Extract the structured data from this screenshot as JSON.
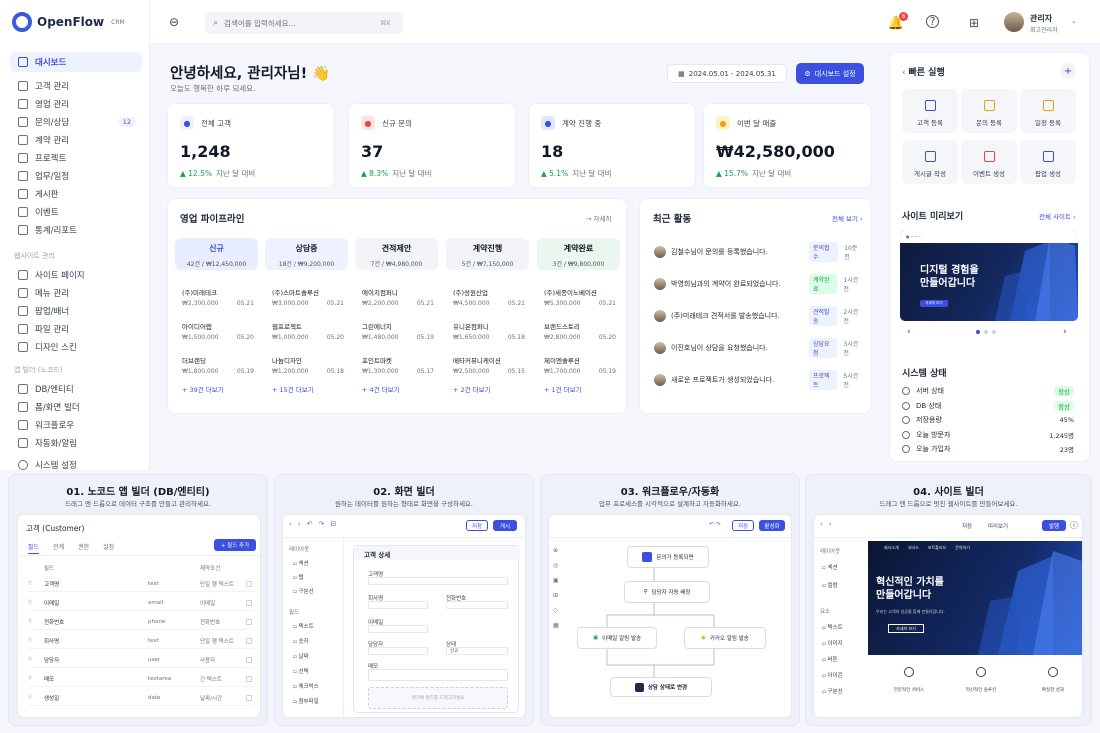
{
  "brand": {
    "name": "OpenFlow",
    "suffix": "CRM"
  },
  "sidebar": {
    "items": [
      {
        "label": "대시보드",
        "icon": "home-icon"
      },
      {
        "label": "고객 관리",
        "icon": "users-icon"
      },
      {
        "label": "영업 관리",
        "icon": "briefcase-icon"
      },
      {
        "label": "문의/상담",
        "icon": "chat-icon",
        "badge": "12"
      },
      {
        "label": "계약 관리",
        "icon": "file-icon"
      },
      {
        "label": "프로젝트",
        "icon": "folder-icon"
      },
      {
        "label": "업무/일정",
        "icon": "calendar-icon"
      },
      {
        "label": "게시판",
        "icon": "board-icon"
      },
      {
        "label": "이벤트",
        "icon": "gift-icon"
      },
      {
        "label": "통계/리포트",
        "icon": "chart-icon"
      }
    ],
    "section_web": "웹사이트 관리",
    "web_items": [
      {
        "label": "사이트 페이지",
        "icon": "page-icon"
      },
      {
        "label": "메뉴 관리",
        "icon": "menu-icon"
      },
      {
        "label": "팝업/배너",
        "icon": "popup-icon"
      },
      {
        "label": "파일 관리",
        "icon": "file-icon"
      },
      {
        "label": "디자인 스킨",
        "icon": "palette-icon"
      }
    ],
    "section_builder": "앱 빌더 (노코드)",
    "builder_items": [
      {
        "label": "DB/엔티티",
        "icon": "database-icon"
      },
      {
        "label": "폼/화면 빌더",
        "icon": "form-icon"
      },
      {
        "label": "워크플로우",
        "icon": "workflow-icon"
      },
      {
        "label": "자동화/알림",
        "icon": "bell-icon"
      }
    ],
    "settings": "시스템 설정"
  },
  "topbar": {
    "search_placeholder": "검색어를 입력하세요...",
    "shortcut": "⌘K",
    "notif_count": "8",
    "user_name": "관리자",
    "user_role": "최고관리자"
  },
  "header": {
    "greeting": "안녕하세요, 관리자님! 👋",
    "sub": "오늘도 행복한 하루 되세요.",
    "date_range": "2024.05.01 - 2024.05.31",
    "settings_btn": "대시보드 설정"
  },
  "stats": [
    {
      "label": "전체 고객",
      "value": "1,248",
      "change": "▲ 12.5%",
      "note": "지난 달 대비",
      "color": "#3b4fe0",
      "bg": "#eef1fe"
    },
    {
      "label": "신규 문의",
      "value": "37",
      "change": "▲ 8.3%",
      "note": "지난 달 대비",
      "color": "#ef4444",
      "bg": "#fee2e2"
    },
    {
      "label": "계약 진행 중",
      "value": "18",
      "change": "▲ 5.1%",
      "note": "지난 달 대비",
      "color": "#3b4fe0",
      "bg": "#e0e7ff"
    },
    {
      "label": "이번 달 매출",
      "value": "₩42,580,000",
      "change": "▲ 15.7%",
      "note": "지난 달 대비",
      "color": "#f59e0b",
      "bg": "#fef3c7"
    }
  ],
  "pipeline": {
    "title": "영업 파이프라인",
    "view_all": "→ 자세히",
    "columns": [
      {
        "name": "신규",
        "summary": "42건 / ₩12,450,000",
        "bg": "#e8edff",
        "color": "#3b4fe0",
        "deals": [
          [
            "(주)미래테크",
            "₩2,300,000",
            "05.21"
          ],
          [
            "아이디어랩",
            "₩1,500,000",
            "05.20"
          ],
          [
            "더브랜딩",
            "₩1,800,000",
            "05.19"
          ]
        ],
        "more": "+ 39건 더보기"
      },
      {
        "name": "상담중",
        "summary": "18건 / ₩9,200,000",
        "bg": "#eef2ff",
        "color": "#111827",
        "deals": [
          [
            "(주)스마트솔루션",
            "₩3,000,000",
            "05.21"
          ],
          [
            "웹프로젝트",
            "₩1,000,000",
            "05.20"
          ],
          [
            "나눔디자인",
            "₩1,200,000",
            "05.18"
          ]
        ],
        "more": "+ 15건 더보기"
      },
      {
        "name": "견적제안",
        "summary": "7건 / ₩4,980,000",
        "bg": "#f3f4f8",
        "color": "#111827",
        "deals": [
          [
            "에이치컴퍼니",
            "₩2,200,000",
            "05.21"
          ],
          [
            "그린에너지",
            "₩1,480,000",
            "05.19"
          ],
          [
            "포인트마켓",
            "₩1,300,000",
            "05.17"
          ]
        ],
        "more": "+ 4건 더보기"
      },
      {
        "name": "계약진행",
        "summary": "5건 / ₩7,150,000",
        "bg": "#f3f4f8",
        "color": "#111827",
        "deals": [
          [
            "(주)성원산업",
            "₩4,500,000",
            "05.21"
          ],
          [
            "유니온컴퍼니",
            "₩1,650,000",
            "05.18"
          ],
          [
            "메타커뮤니케이션",
            "₩2,500,000",
            "05.15"
          ]
        ],
        "more": "+ 2건 더보기"
      },
      {
        "name": "계약완료",
        "summary": "3건 / ₩9,800,000",
        "bg": "#eaf7ee",
        "color": "#111827",
        "deals": [
          [
            "(주)세종이노베이션",
            "₩5,300,000",
            "05.21"
          ],
          [
            "브랜드스토리",
            "₩2,800,000",
            "05.20"
          ],
          [
            "제이엔솔루션",
            "₩1,700,000",
            "05.19"
          ]
        ],
        "more": "+ 1건 더보기"
      }
    ]
  },
  "activity": {
    "title": "최근 활동",
    "view_all": "전체 보기 ›",
    "items": [
      {
        "text": "김철수님이 문의를 등록했습니다.",
        "tag": "문의접수",
        "tag_color": "#3b4fe0",
        "tag_bg": "#eef1fe",
        "time": "10분 전"
      },
      {
        "text": "박영희님과의 계약이 완료되었습니다.",
        "tag": "계약완료",
        "tag_color": "#16a34a",
        "tag_bg": "#dcfce7",
        "time": "1시간 전"
      },
      {
        "text": "(주)미래테크 견적서를 발송했습니다.",
        "tag": "견적발송",
        "tag_color": "#3b4fe0",
        "tag_bg": "#eef1fe",
        "time": "2시간 전"
      },
      {
        "text": "이진호님이 상담을 요청했습니다.",
        "tag": "상담요청",
        "tag_color": "#3b4fe0",
        "tag_bg": "#eef1fe",
        "time": "3시간 전"
      },
      {
        "text": "새로운 프로젝트가 생성되었습니다.",
        "tag": "프로젝트",
        "tag_color": "#3b4fe0",
        "tag_bg": "#eef1fe",
        "time": "5시간 전"
      }
    ]
  },
  "quick": {
    "title": "빠른 실행",
    "items": [
      "고객 등록",
      "문의 등록",
      "일정 등록",
      "게시글 작성",
      "이벤트 생성",
      "팝업 생성"
    ]
  },
  "preview": {
    "title": "사이트 미리보기",
    "view_all": "전체 사이트 ›",
    "hero": "디지털 경험을\n만들어갑니다",
    "btn": "자세히 보기"
  },
  "system": {
    "title": "시스템 상태",
    "items": [
      {
        "label": "서버 상태",
        "value": "정상",
        "ok": true
      },
      {
        "label": "DB 상태",
        "value": "정상",
        "ok": true
      },
      {
        "label": "저장용량",
        "value": "45%",
        "ok": false
      },
      {
        "label": "오늘 방문자",
        "value": "1,245명",
        "ok": false
      },
      {
        "label": "오늘 가입자",
        "value": "23명",
        "ok": false
      }
    ]
  },
  "features": [
    {
      "title": "01. 노코드 앱 빌더 (DB/엔티티)",
      "sub": "드래그 앤 드롭으로 데이터 구조를 만들고 관리하세요."
    },
    {
      "title": "02. 화면 빌더",
      "sub": "원하는 데이터를 원하는 형태로 화면을 구성하세요."
    },
    {
      "title": "03. 워크플로우/자동화",
      "sub": "업무 프로세스를 시각적으로 설계하고 자동화하세요."
    },
    {
      "title": "04. 사이트 빌더",
      "sub": "드래그 앤 드롭으로 멋진 웹사이트를 만들어보세요."
    }
  ],
  "entity": {
    "title": "고객 (Customer)",
    "tabs": [
      "필드",
      "관계",
      "권한",
      "설정"
    ],
    "add_btn": "+ 필드 추가",
    "head": [
      "필드",
      "",
      "제약조건"
    ],
    "rows": [
      [
        "고객명",
        "text",
        "단일 행 텍스트"
      ],
      [
        "이메일",
        "email",
        "이메일"
      ],
      [
        "전화번호",
        "phone",
        "전화번호"
      ],
      [
        "회사명",
        "text",
        "단일 행 텍스트"
      ],
      [
        "담당자",
        "user",
        "사용자"
      ],
      [
        "메모",
        "textarea",
        "긴 텍스트"
      ],
      [
        "생성일",
        "date",
        "날짜/시간"
      ]
    ]
  },
  "screen": {
    "save": "저장",
    "publish": "게시",
    "layout": "레이아웃",
    "layout_items": [
      "섹션",
      "탭",
      "구분선"
    ],
    "field_head": "필드",
    "field_items": [
      "텍스트",
      "숫자",
      "날짜",
      "선택",
      "체크박스",
      "첨부파일"
    ],
    "form_title": "고객 상세",
    "labels": [
      "고객명",
      "회사명",
      "전화번호",
      "이메일",
      "담당자",
      "상태",
      "메모"
    ],
    "status_value": "신규",
    "drop": "여기에 필드를 드래그하세요"
  },
  "workflow": {
    "save": "저장",
    "run": "활성화",
    "n1": "문의가 등록되면",
    "n2": "담당자 자동 배정",
    "n3": "이메일 알림 발송",
    "n4": "카카오 알림 발송",
    "n5": "상담 상태로 변경"
  },
  "sitebuilder": {
    "save": "저장",
    "preview": "미리보기",
    "publish": "발행",
    "layout": "레이아웃",
    "layout_items": [
      "섹션",
      "컬럼"
    ],
    "elem_head": "요소",
    "elem_items": [
      "텍스트",
      "이미지",
      "버튼",
      "아이콘",
      "구분선"
    ],
    "nav": [
      "회사소개",
      "서비스",
      "포트폴리오",
      "문의하기"
    ],
    "hero": "혁신적인 가치를\n만들어갑니다",
    "hero_sub": "우리는 고객의 성공을 함께 만들어갑니다.",
    "btn": "자세히 보기",
    "features": [
      "전문적인 서비스",
      "혁신적인 솔루션",
      "확실한 성과"
    ]
  }
}
